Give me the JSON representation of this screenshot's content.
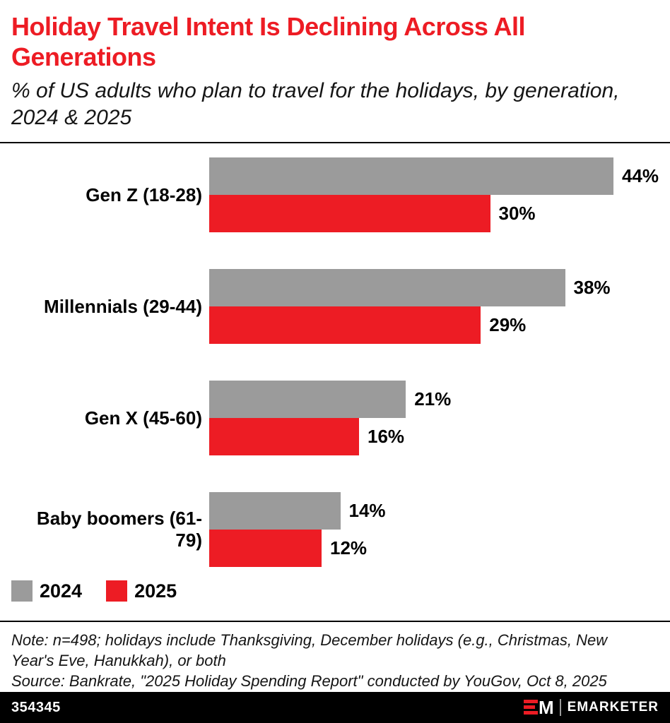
{
  "header": {
    "title": "Holiday Travel Intent Is Declining Across All Generations",
    "subtitle": "% of US adults who plan to travel for the holidays, by generation, 2024 & 2025"
  },
  "chart_data": {
    "type": "bar",
    "orientation": "horizontal",
    "title": "Holiday Travel Intent Is Declining Across All Generations",
    "subtitle": "% of US adults who plan to travel for the holidays, by generation, 2024 & 2025",
    "categories": [
      "Gen Z (18-28)",
      "Millennials (29-44)",
      "Gen X (45-60)",
      "Baby boomers (61-79)"
    ],
    "series": [
      {
        "name": "2024",
        "color": "#9b9b9b",
        "values": [
          44,
          38,
          21,
          14
        ]
      },
      {
        "name": "2025",
        "color": "#ed1c24",
        "values": [
          30,
          29,
          16,
          12
        ]
      }
    ],
    "value_suffix": "%",
    "xlim": [
      0,
      48
    ],
    "grid": false,
    "legend_position": "bottom-left"
  },
  "legend": [
    {
      "label": "2024",
      "color": "#9b9b9b"
    },
    {
      "label": "2025",
      "color": "#ed1c24"
    }
  ],
  "footer": {
    "note": "Note: n=498; holidays include Thanksgiving, December holidays (e.g., Christmas, New Year's Eve, Hanukkah), or both",
    "source": "Source: Bankrate, \"2025 Holiday Spending Report\" conducted by YouGov, Oct 8, 2025",
    "chart_id": "354345",
    "brand": "EMARKETER"
  },
  "colors": {
    "accent_red": "#ed1c24",
    "bar_gray": "#9b9b9b",
    "footer_bg": "#000000",
    "footer_text": "#ffffff"
  }
}
